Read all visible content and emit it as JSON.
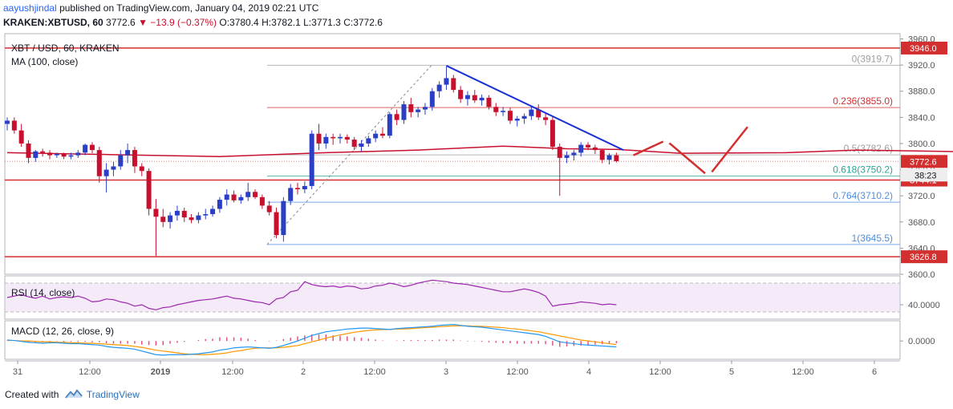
{
  "header": {
    "author": "aayushjindal",
    "published_text": "published on TradingView.com, January 04, 2019 02:21 UTC",
    "symbol": "KRAKEN:XBTUSD, 60",
    "last": "3772.6",
    "change": "▼ −13.9 (−0.37%)",
    "o_label": "O:",
    "o_value": "3780.4",
    "h_label": "H:",
    "h_value": "3782.1",
    "l_label": "L:",
    "l_value": "3771.3",
    "c_label": "C:",
    "c_value": "3772.6"
  },
  "legend": {
    "title": "XBT / USD, 60, KRAKEN",
    "ma": "MA (100, close)",
    "rsi": "RSI (14, close)",
    "macd": "MACD (12, 26, close, 9)"
  },
  "footer": {
    "created_with": "Created with",
    "brand": "TradingView"
  },
  "colors": {
    "up": "#2b3fc4",
    "down": "#c8102e",
    "ma": "#c8102e",
    "support": "#d32f2f",
    "trend": "#1a31d4",
    "fib_grey": "#9e9e9e",
    "fib_red": "#d32f2f",
    "fib_green": "#26a69a",
    "fib_blue": "#4a90e2",
    "rsi": "#9c27b0",
    "macd_line": "#2196f3",
    "signal_line": "#ff9800"
  },
  "chart_data": {
    "type": "candlestick",
    "price_axis": {
      "ticks": [
        "3960.0",
        "3920.0",
        "3880.0",
        "3840.0",
        "3800.0",
        "3760.0",
        "3720.0",
        "3680.0",
        "3640.0",
        "3600.0"
      ],
      "range": [
        3600,
        3968
      ]
    },
    "time_axis": {
      "ticks": [
        "31",
        "12:00",
        "2019",
        "12:00",
        "2",
        "12:00",
        "3",
        "12:00",
        "4",
        "12:00",
        "5",
        "12:00",
        "6"
      ]
    },
    "candles": [
      [
        3830,
        3840,
        3820,
        3835
      ],
      [
        3835,
        3840,
        3815,
        3820
      ],
      [
        3820,
        3830,
        3795,
        3800
      ],
      [
        3800,
        3805,
        3770,
        3778
      ],
      [
        3778,
        3790,
        3772,
        3788
      ],
      [
        3788,
        3792,
        3780,
        3786
      ],
      [
        3786,
        3790,
        3776,
        3782
      ],
      [
        3782,
        3786,
        3778,
        3784
      ],
      [
        3784,
        3786,
        3776,
        3780
      ],
      [
        3780,
        3786,
        3776,
        3782
      ],
      [
        3782,
        3790,
        3778,
        3786
      ],
      [
        3786,
        3800,
        3782,
        3798
      ],
      [
        3798,
        3802,
        3785,
        3790
      ],
      [
        3790,
        3795,
        3740,
        3750
      ],
      [
        3750,
        3770,
        3725,
        3760
      ],
      [
        3760,
        3772,
        3750,
        3765
      ],
      [
        3765,
        3790,
        3760,
        3782
      ],
      [
        3782,
        3800,
        3770,
        3790
      ],
      [
        3790,
        3795,
        3755,
        3765
      ],
      [
        3765,
        3770,
        3750,
        3758
      ],
      [
        3758,
        3762,
        3690,
        3700
      ],
      [
        3700,
        3715,
        3628,
        3688
      ],
      [
        3688,
        3700,
        3672,
        3680
      ],
      [
        3680,
        3695,
        3670,
        3690
      ],
      [
        3690,
        3705,
        3682,
        3697
      ],
      [
        3697,
        3702,
        3680,
        3687
      ],
      [
        3687,
        3692,
        3678,
        3683
      ],
      [
        3683,
        3695,
        3678,
        3690
      ],
      [
        3690,
        3700,
        3684,
        3692
      ],
      [
        3692,
        3705,
        3688,
        3700
      ],
      [
        3700,
        3718,
        3694,
        3714
      ],
      [
        3714,
        3730,
        3705,
        3722
      ],
      [
        3722,
        3728,
        3710,
        3713
      ],
      [
        3713,
        3722,
        3708,
        3718
      ],
      [
        3718,
        3740,
        3712,
        3726
      ],
      [
        3726,
        3730,
        3715,
        3718
      ],
      [
        3718,
        3722,
        3700,
        3705
      ],
      [
        3705,
        3712,
        3690,
        3695
      ],
      [
        3695,
        3702,
        3655,
        3660
      ],
      [
        3660,
        3718,
        3650,
        3712
      ],
      [
        3712,
        3738,
        3706,
        3732
      ],
      [
        3732,
        3740,
        3722,
        3730
      ],
      [
        3730,
        3742,
        3724,
        3735
      ],
      [
        3735,
        3820,
        3730,
        3815
      ],
      [
        3815,
        3830,
        3790,
        3800
      ],
      [
        3800,
        3815,
        3792,
        3810
      ],
      [
        3810,
        3815,
        3798,
        3808
      ],
      [
        3808,
        3815,
        3800,
        3810
      ],
      [
        3810,
        3814,
        3800,
        3806
      ],
      [
        3806,
        3810,
        3790,
        3795
      ],
      [
        3795,
        3805,
        3788,
        3800
      ],
      [
        3800,
        3812,
        3795,
        3808
      ],
      [
        3808,
        3820,
        3802,
        3815
      ],
      [
        3815,
        3825,
        3808,
        3812
      ],
      [
        3812,
        3848,
        3808,
        3845
      ],
      [
        3845,
        3852,
        3828,
        3836
      ],
      [
        3836,
        3865,
        3830,
        3860
      ],
      [
        3860,
        3870,
        3840,
        3848
      ],
      [
        3848,
        3856,
        3840,
        3852
      ],
      [
        3852,
        3862,
        3844,
        3856
      ],
      [
        3856,
        3885,
        3850,
        3880
      ],
      [
        3880,
        3895,
        3870,
        3890
      ],
      [
        3890,
        3918,
        3882,
        3900
      ],
      [
        3900,
        3905,
        3878,
        3882
      ],
      [
        3882,
        3888,
        3862,
        3868
      ],
      [
        3868,
        3880,
        3858,
        3874
      ],
      [
        3874,
        3882,
        3862,
        3866
      ],
      [
        3866,
        3875,
        3858,
        3870
      ],
      [
        3870,
        3874,
        3852,
        3856
      ],
      [
        3856,
        3862,
        3842,
        3848
      ],
      [
        3848,
        3856,
        3842,
        3850
      ],
      [
        3850,
        3855,
        3830,
        3835
      ],
      [
        3835,
        3842,
        3826,
        3838
      ],
      [
        3838,
        3846,
        3830,
        3842
      ],
      [
        3842,
        3858,
        3836,
        3852
      ],
      [
        3852,
        3860,
        3836,
        3840
      ],
      [
        3840,
        3846,
        3828,
        3836
      ],
      [
        3836,
        3842,
        3790,
        3795
      ],
      [
        3795,
        3800,
        3720,
        3778
      ],
      [
        3778,
        3788,
        3770,
        3782
      ],
      [
        3782,
        3790,
        3774,
        3786
      ],
      [
        3786,
        3802,
        3780,
        3798
      ],
      [
        3798,
        3802,
        3790,
        3794
      ],
      [
        3794,
        3798,
        3784,
        3790
      ],
      [
        3790,
        3792,
        3770,
        3775
      ],
      [
        3775,
        3785,
        3768,
        3782
      ],
      [
        3782,
        3786,
        3771,
        3773
      ]
    ],
    "ma_line": [
      [
        0,
        3786
      ],
      [
        15,
        3783
      ],
      [
        30,
        3780
      ],
      [
        45,
        3786
      ],
      [
        58,
        3790
      ],
      [
        70,
        3796
      ],
      [
        79,
        3792
      ],
      [
        86,
        3791
      ],
      [
        95,
        3785
      ],
      [
        110,
        3786
      ],
      [
        120,
        3790
      ],
      [
        132,
        3788
      ],
      [
        146,
        3785
      ],
      [
        158,
        3786
      ],
      [
        172,
        3786
      ],
      [
        183,
        3784
      ]
    ],
    "horizontal_levels": [
      {
        "price": 3946.0,
        "label": "3946.0"
      },
      {
        "price": 3744.1,
        "label": "3744.1"
      },
      {
        "price": 3626.8,
        "label": "3626.8"
      }
    ],
    "current_price": {
      "price": 3772.6,
      "label": "3772.6",
      "countdown": "38:23"
    },
    "fibonacci": [
      {
        "ratio": "0",
        "value": "3919.7",
        "price": 3919.7,
        "color": "fib_grey"
      },
      {
        "ratio": "0.236",
        "value": "3855.0",
        "price": 3855.0,
        "color": "fib_red"
      },
      {
        "ratio": "0.5",
        "value": "3782.6",
        "price": 3782.6,
        "color": "fib_grey"
      },
      {
        "ratio": "0.618",
        "value": "3750.2",
        "price": 3750.2,
        "color": "fib_green"
      },
      {
        "ratio": "0.764",
        "value": "3710.2",
        "price": 3710.2,
        "color": "fib_blue"
      },
      {
        "ratio": "1",
        "value": "3645.5",
        "price": 3645.5,
        "color": "fib_blue"
      }
    ],
    "trendline": [
      [
        62,
        3919
      ],
      [
        87,
        3790
      ]
    ],
    "projection": [
      [
        88,
        3780
      ],
      [
        93,
        3805
      ],
      [
        99,
        3750
      ],
      [
        105,
        3832
      ]
    ],
    "rsi": {
      "axis_tick": "40.0000",
      "range": [
        20,
        80
      ],
      "values": [
        50,
        52,
        54,
        51,
        49,
        52,
        48,
        50,
        51,
        50,
        52,
        49,
        44,
        45,
        48,
        47,
        44,
        42,
        38,
        40,
        35,
        33,
        36,
        37,
        40,
        42,
        44,
        46,
        47,
        48,
        50,
        52,
        49,
        48,
        46,
        44,
        43,
        40,
        48,
        50,
        58,
        60,
        72,
        68,
        66,
        65,
        66,
        64,
        66,
        65,
        62,
        63,
        66,
        67,
        70,
        68,
        65,
        67,
        70,
        72,
        74,
        73,
        72,
        70,
        69,
        68,
        66,
        64,
        62,
        60,
        58,
        58,
        60,
        62,
        60,
        57,
        52,
        38,
        40,
        41,
        42,
        44,
        43,
        42,
        40,
        41,
        40
      ]
    },
    "macd": {
      "axis_tick": "0.0000",
      "range": [
        -40,
        44
      ],
      "macd": [
        2,
        1,
        -1,
        -3,
        -4,
        -5,
        -4,
        -4,
        -5,
        -6,
        -6,
        -7,
        -8,
        -9,
        -12,
        -14,
        -15,
        -16,
        -18,
        -22,
        -26,
        -30,
        -31,
        -30,
        -30,
        -30,
        -29,
        -28,
        -26,
        -24,
        -20,
        -18,
        -15,
        -14,
        -13,
        -14,
        -15,
        -16,
        -14,
        -10,
        -5,
        0,
        6,
        12,
        16,
        20,
        22,
        24,
        26,
        27,
        28,
        28,
        27,
        26,
        25,
        27,
        28,
        29,
        30,
        31,
        32,
        34,
        35,
        36,
        34,
        32,
        31,
        30,
        28,
        26,
        24,
        22,
        20,
        18,
        16,
        14,
        10,
        4,
        -2,
        -4,
        -6,
        -8,
        -9,
        -10,
        -11,
        -12,
        -13
      ],
      "signal": [
        1,
        1,
        0,
        0,
        -1,
        -2,
        -2,
        -3,
        -3,
        -4,
        -4,
        -5,
        -5,
        -6,
        -7,
        -8,
        -9,
        -10,
        -12,
        -14,
        -17,
        -20,
        -22,
        -24,
        -26,
        -28,
        -29,
        -30,
        -30,
        -29,
        -28,
        -26,
        -23,
        -21,
        -18,
        -16,
        -15,
        -15,
        -15,
        -14,
        -12,
        -10,
        -6,
        -2,
        2,
        6,
        10,
        13,
        16,
        19,
        21,
        23,
        24,
        25,
        25,
        26,
        26,
        27,
        28,
        29,
        30,
        31,
        32,
        33,
        33,
        33,
        32,
        32,
        31,
        30,
        29,
        27,
        26,
        24,
        22,
        20,
        17,
        14,
        11,
        8,
        5,
        2,
        0,
        -2,
        -4,
        -6,
        -8
      ],
      "hist_color": "#e8507a"
    }
  }
}
